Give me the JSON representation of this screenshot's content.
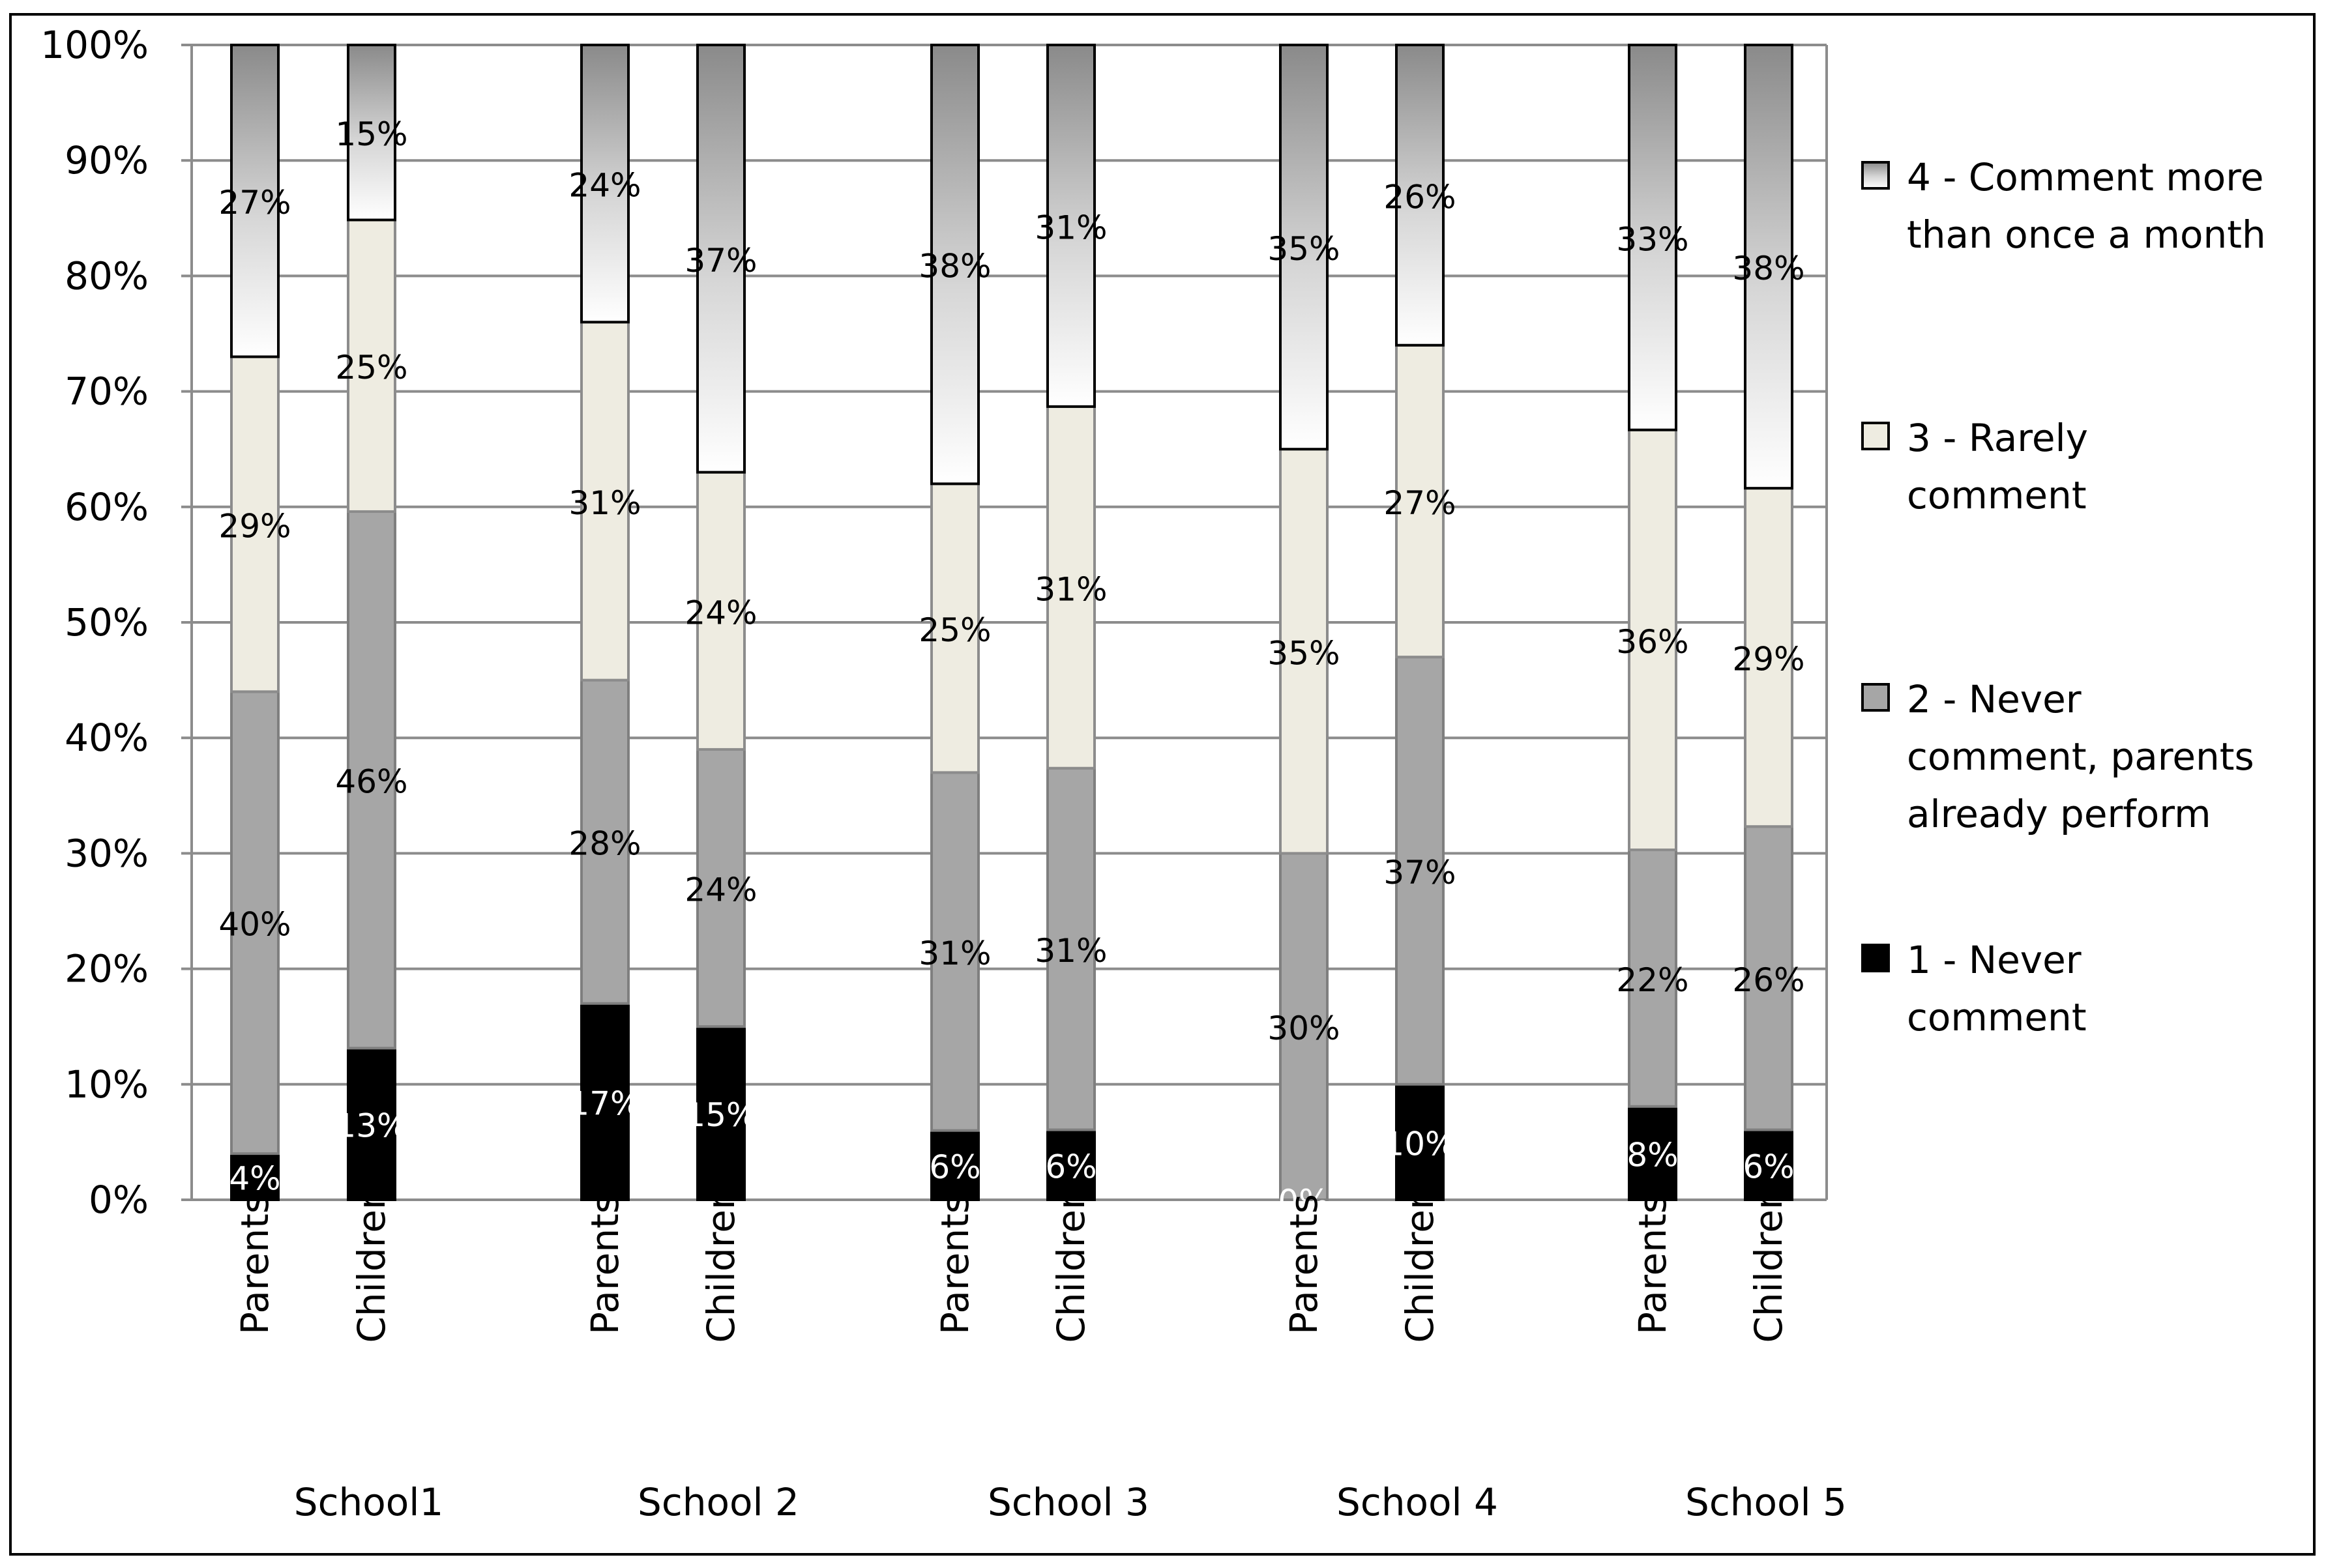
{
  "chart_data": {
    "type": "bar",
    "stacked": true,
    "title": "",
    "xlabel": "",
    "ylabel": "",
    "ylim": [
      0,
      100
    ],
    "y_tick_labels": [
      "0%",
      "10%",
      "20%",
      "30%",
      "40%",
      "50%",
      "60%",
      "70%",
      "80%",
      "90%",
      "100%"
    ],
    "grid": true,
    "legend_position": "right",
    "groups": [
      {
        "label": "School1",
        "bars": [
          "Parents",
          "Children"
        ]
      },
      {
        "label": "School 2",
        "bars": [
          "Parents",
          "Children"
        ]
      },
      {
        "label": "School 3",
        "bars": [
          "Parents",
          "Children"
        ]
      },
      {
        "label": "School 4",
        "bars": [
          "Parents",
          "Children"
        ]
      },
      {
        "label": "School 5",
        "bars": [
          "Parents",
          "Children"
        ]
      }
    ],
    "categories": [
      "Parents",
      "Children",
      "Parents",
      "Children",
      "Parents",
      "Children",
      "Parents",
      "Children",
      "Parents",
      "Children"
    ],
    "series": [
      {
        "name": "1 - Never comment",
        "legend_lines": [
          "1 - Never",
          "comment"
        ],
        "color": "#000000",
        "label_color": "#ffffff",
        "values": [
          4,
          13,
          17,
          15,
          6,
          6,
          0,
          10,
          8,
          6
        ],
        "labels": [
          "4%",
          "13%",
          "17%",
          "15%",
          "6%",
          "6%",
          "0%",
          "10%",
          "8%",
          "6%"
        ]
      },
      {
        "name": "2 - Never comment, parents already perform",
        "legend_lines": [
          "2 - Never",
          "comment, parents",
          "already perform"
        ],
        "color": "#a6a6a6",
        "label_color": "#000000",
        "values": [
          40,
          46,
          28,
          24,
          31,
          31,
          30,
          37,
          22,
          26
        ],
        "labels": [
          "40%",
          "46%",
          "28%",
          "24%",
          "31%",
          "31%",
          "30%",
          "37%",
          "22%",
          "26%"
        ]
      },
      {
        "name": "3 - Rarely comment",
        "legend_lines": [
          "3 - Rarely",
          "comment"
        ],
        "color": "#eeece1",
        "label_color": "#000000",
        "values": [
          29,
          25,
          31,
          24,
          25,
          31,
          35,
          27,
          36,
          29
        ],
        "labels": [
          "29%",
          "25%",
          "31%",
          "24%",
          "25%",
          "31%",
          "35%",
          "27%",
          "36%",
          "29%"
        ]
      },
      {
        "name": "4 - Comment more than once a month",
        "legend_lines": [
          "4 - Comment more",
          "than once a month"
        ],
        "color": "gradient:#8a8a8a-#ffffff",
        "label_color": "#000000",
        "values": [
          27,
          15,
          24,
          37,
          38,
          31,
          35,
          26,
          33,
          38
        ],
        "labels": [
          "27%",
          "15%",
          "24%",
          "37%",
          "38%",
          "31%",
          "35%",
          "26%",
          "33%",
          "38%"
        ]
      }
    ]
  }
}
